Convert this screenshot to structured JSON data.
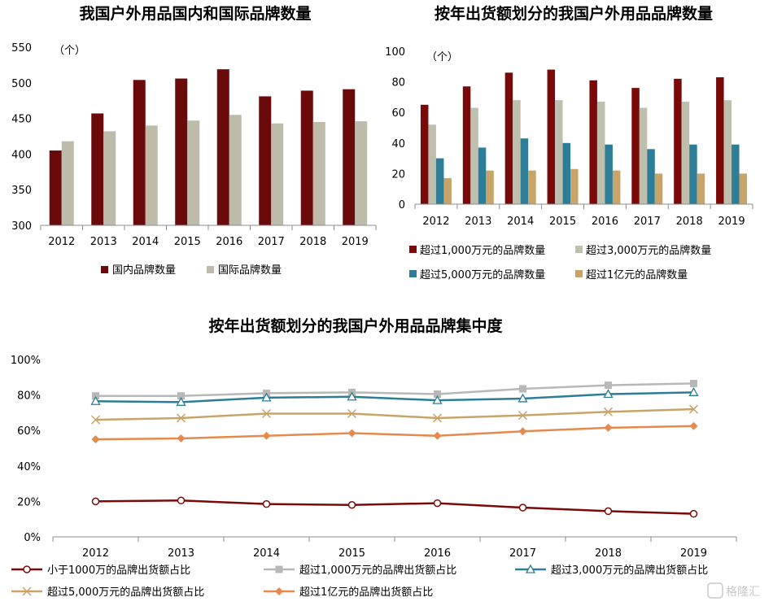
{
  "colors": {
    "domestic": "#6b0a0a",
    "international": "#bdbcab",
    "over10m": "#7a0a0a",
    "over30m": "#bfbfae",
    "over50m": "#2e7d96",
    "over100m": "#c8a468",
    "line_lt10m": "#7a0a0a",
    "line_over10m": "#b8b8b8",
    "line_over30m": "#2e7d96",
    "line_over50m": "#c8a468",
    "line_over100m": "#e58a4e"
  },
  "watermark": "格隆汇",
  "chart_data": [
    {
      "type": "bar",
      "title": "我国户外用品国内和国际品牌数量",
      "unit": "（个）",
      "categories": [
        "2012",
        "2013",
        "2014",
        "2015",
        "2016",
        "2017",
        "2018",
        "2019"
      ],
      "ylim": [
        300,
        550
      ],
      "yticks": [
        "300",
        "350",
        "400",
        "450",
        "500",
        "550"
      ],
      "series": [
        {
          "name": "国内品牌数量",
          "values": [
            405,
            457,
            504,
            506,
            519,
            481,
            489,
            491
          ]
        },
        {
          "name": "国际品牌数量",
          "values": [
            418,
            432,
            440,
            447,
            455,
            443,
            445,
            446
          ]
        }
      ],
      "legend": "bottom"
    },
    {
      "type": "bar",
      "title": "按年出货额划分的我国户外用品品牌数量",
      "unit": "（个）",
      "categories": [
        "2012",
        "2013",
        "2014",
        "2015",
        "2016",
        "2017",
        "2018",
        "2019"
      ],
      "ylim": [
        0,
        100
      ],
      "yticks": [
        "0",
        "20",
        "40",
        "60",
        "80",
        "100"
      ],
      "series": [
        {
          "name": "超过1,000万元的品牌数量",
          "values": [
            65,
            77,
            86,
            88,
            81,
            76,
            82,
            83
          ]
        },
        {
          "name": "超过3,000万元的品牌数量",
          "values": [
            52,
            63,
            68,
            68,
            67,
            63,
            67,
            68
          ]
        },
        {
          "name": "超过5,000万元的品牌数量",
          "values": [
            30,
            37,
            43,
            40,
            39,
            36,
            39,
            39
          ]
        },
        {
          "name": "超过1亿元的品牌数量",
          "values": [
            17,
            22,
            22,
            23,
            22,
            20,
            20,
            20
          ]
        }
      ],
      "legend": "bottom"
    },
    {
      "type": "line",
      "title": "按年出货额划分的我国户外用品品牌集中度",
      "categories": [
        "2012",
        "2013",
        "2014",
        "2015",
        "2016",
        "2017",
        "2018",
        "2019"
      ],
      "ylim": [
        0,
        100
      ],
      "yticks": [
        "0%",
        "20%",
        "40%",
        "60%",
        "80%",
        "100%"
      ],
      "series": [
        {
          "name": "小于1000万的品牌出货额占比",
          "values": [
            20,
            20.5,
            18.5,
            18,
            19,
            16.5,
            14.5,
            13
          ],
          "marker": "circle"
        },
        {
          "name": "超过1,000万元的品牌出货额占比",
          "values": [
            79.5,
            79.5,
            81,
            81.5,
            80.5,
            83.5,
            85.5,
            86.5
          ],
          "marker": "square"
        },
        {
          "name": "超过3,000万元的品牌出货额占比",
          "values": [
            76.5,
            76,
            78.5,
            79,
            77,
            78,
            80.5,
            81.5
          ],
          "marker": "triangle"
        },
        {
          "name": "超过5,000万元的品牌出货额占比",
          "values": [
            66,
            67,
            69.5,
            69.5,
            67,
            68.5,
            70.5,
            72
          ],
          "marker": "x"
        },
        {
          "name": "超过1亿元的品牌出货额占比",
          "values": [
            55,
            55.5,
            57,
            58.5,
            57,
            59.5,
            61.5,
            62.5
          ],
          "marker": "diamond"
        }
      ],
      "legend": "bottom"
    }
  ]
}
